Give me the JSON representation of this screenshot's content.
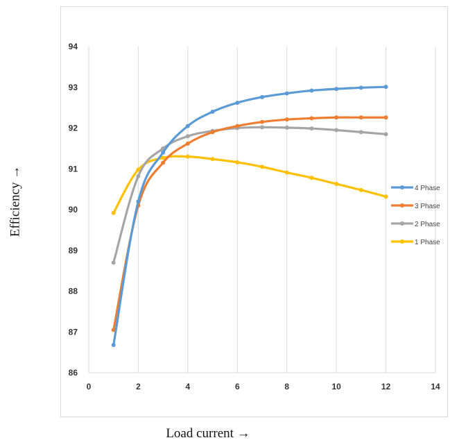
{
  "chart_data": {
    "type": "line",
    "title": "",
    "xlabel": "Load current →",
    "ylabel": "Efficiency →",
    "xlim": [
      0,
      14
    ],
    "ylim": [
      86,
      94
    ],
    "xticks": [
      "0",
      "2",
      "4",
      "6",
      "8",
      "10",
      "12",
      "14"
    ],
    "yticks": [
      "86",
      "87",
      "88",
      "89",
      "90",
      "91",
      "92",
      "93",
      "94"
    ],
    "grid": "vertical",
    "legend_position": "right",
    "series": [
      {
        "name": "4 Phase",
        "color": "#5b9bd5",
        "x": [
          1,
          2,
          3,
          4,
          5,
          6,
          7,
          8,
          9,
          10,
          11,
          12
        ],
        "values": [
          86.68,
          90.2,
          91.4,
          92.05,
          92.4,
          92.62,
          92.76,
          92.85,
          92.92,
          92.96,
          92.99,
          93.01
        ]
      },
      {
        "name": "3 Phase",
        "color": "#ed7d31",
        "x": [
          1,
          2,
          3,
          4,
          5,
          6,
          7,
          8,
          9,
          10,
          11,
          12
        ],
        "values": [
          87.05,
          90.1,
          91.15,
          91.62,
          91.9,
          92.05,
          92.15,
          92.21,
          92.24,
          92.26,
          92.26,
          92.26
        ]
      },
      {
        "name": "2 Phase",
        "color": "#a5a5a5",
        "x": [
          1,
          2,
          3,
          4,
          5,
          6,
          7,
          8,
          9,
          10,
          11,
          12
        ],
        "values": [
          88.7,
          90.82,
          91.5,
          91.8,
          91.93,
          92.0,
          92.02,
          92.01,
          91.99,
          91.95,
          91.9,
          91.85
        ]
      },
      {
        "name": "1 Phase",
        "color": "#ffc000",
        "x": [
          1,
          2,
          3,
          4,
          5,
          6,
          7,
          8,
          9,
          10,
          11,
          12
        ],
        "values": [
          89.92,
          90.98,
          91.27,
          91.3,
          91.24,
          91.16,
          91.05,
          90.91,
          90.78,
          90.63,
          90.48,
          90.32
        ]
      }
    ]
  }
}
